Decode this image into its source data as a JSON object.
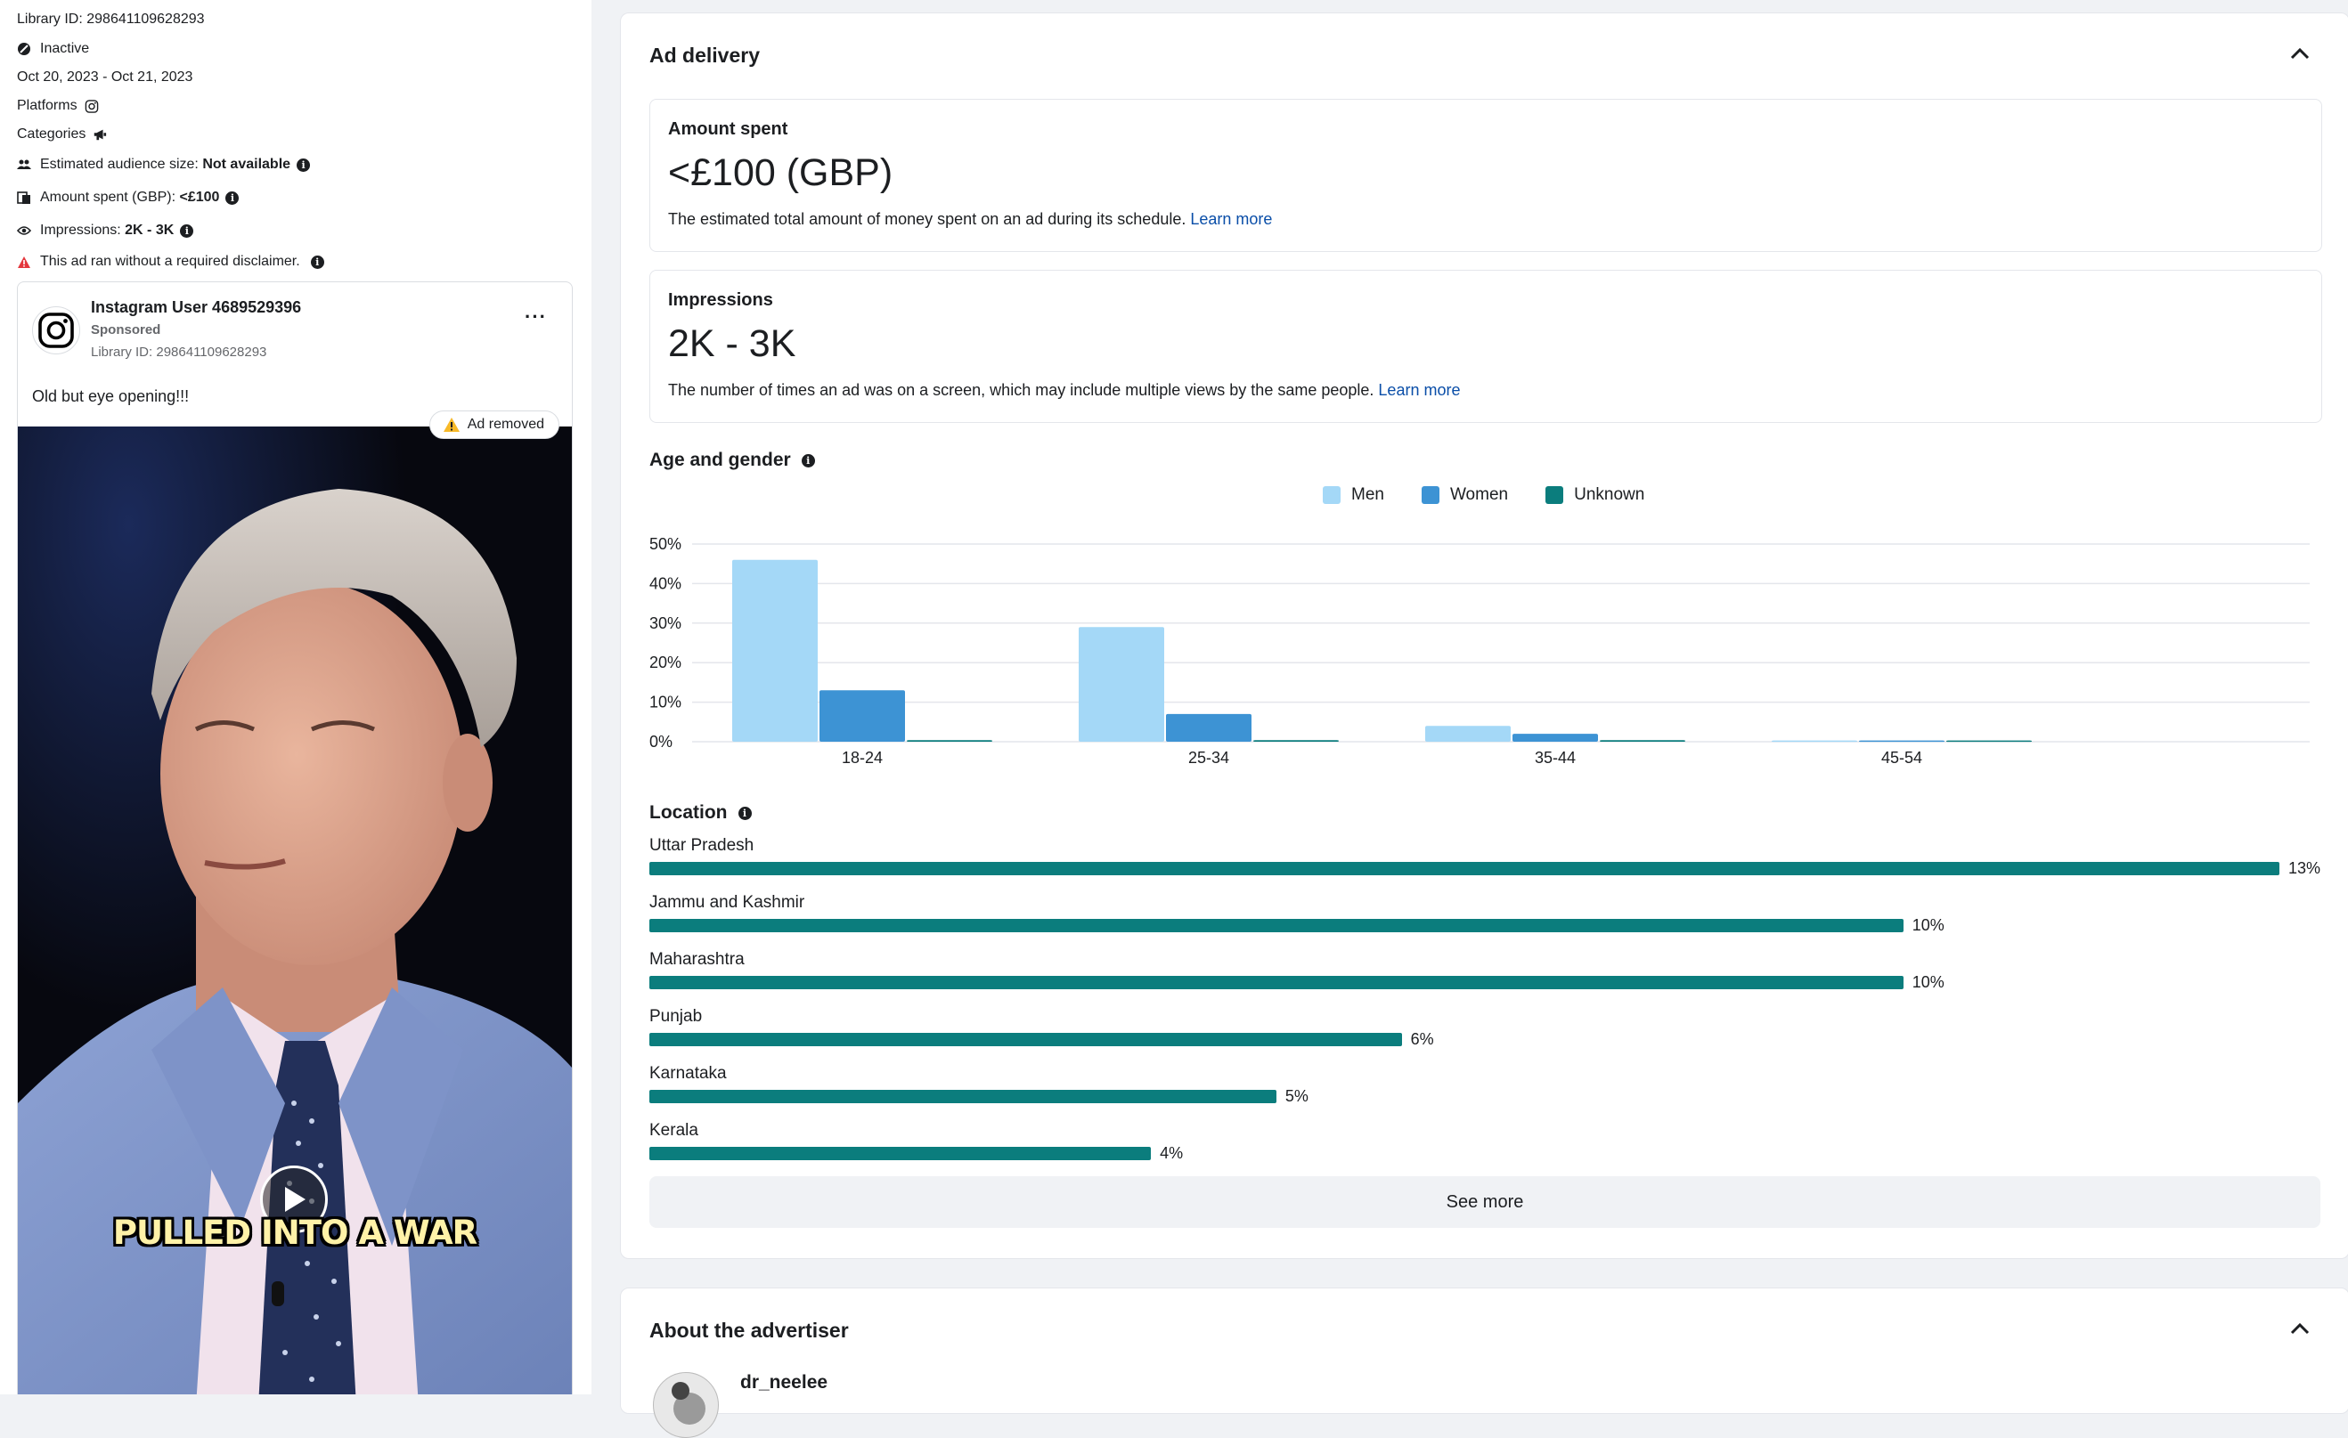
{
  "left": {
    "library_id": "Library ID: 298641109628293",
    "status": "Inactive",
    "dates": "Oct 20, 2023 - Oct 21, 2023",
    "platforms_label": "Platforms",
    "categories_label": "Categories",
    "audience_label": "Estimated audience size:",
    "audience_value": "Not available",
    "amount_label": "Amount spent (GBP):",
    "amount_value": "<£100",
    "impressions_label": "Impressions:",
    "impressions_value": "2K - 3K",
    "disclaimer": "This ad ran without a required disclaimer."
  },
  "ad": {
    "user": "Instagram User 4689529396",
    "sponsored": "Sponsored",
    "library_id": "Library ID: 298641109628293",
    "more": "···",
    "text": "Old but eye opening!!!",
    "removed_badge": "Ad removed",
    "caption": "PULLED INTO A WAR"
  },
  "delivery": {
    "title": "Ad delivery",
    "amount_spent": {
      "label": "Amount spent",
      "value": "<£100 (GBP)",
      "desc": "The estimated total amount of money spent on an ad during its schedule.",
      "link": "Learn more"
    },
    "impressions": {
      "label": "Impressions",
      "value": "2K - 3K",
      "desc": "The number of times an ad was on a screen, which may include multiple views by the same people.",
      "link": "Learn more"
    },
    "age_gender_title": "Age and gender",
    "location_title": "Location",
    "see_more": "See more"
  },
  "chart_data": {
    "type": "bar",
    "title": "Age and gender",
    "categories": [
      "18-24",
      "25-34",
      "35-44",
      "45-54"
    ],
    "y_ticks": [
      "0%",
      "10%",
      "20%",
      "30%",
      "40%",
      "50%"
    ],
    "ylim": [
      0,
      50
    ],
    "legend": "top-center",
    "grid": true,
    "series": [
      {
        "name": "Men",
        "color": "#a4d8f7",
        "values": [
          46,
          29,
          4,
          0.3
        ]
      },
      {
        "name": "Women",
        "color": "#3d93d4",
        "values": [
          13,
          7,
          2,
          0.3
        ]
      },
      {
        "name": "Unknown",
        "color": "#0b7d7d",
        "values": [
          0.4,
          0.4,
          0.4,
          0.3
        ]
      }
    ]
  },
  "location": {
    "max": 13,
    "items": [
      {
        "name": "Uttar Pradesh",
        "value": 13,
        "label": "13%"
      },
      {
        "name": "Jammu and Kashmir",
        "value": 10,
        "label": "10%"
      },
      {
        "name": "Maharashtra",
        "value": 10,
        "label": "10%"
      },
      {
        "name": "Punjab",
        "value": 6,
        "label": "6%"
      },
      {
        "name": "Karnataka",
        "value": 5,
        "label": "5%"
      },
      {
        "name": "Kerala",
        "value": 4,
        "label": "4%"
      }
    ]
  },
  "advertiser": {
    "title": "About the advertiser",
    "name": "dr_neelee"
  }
}
